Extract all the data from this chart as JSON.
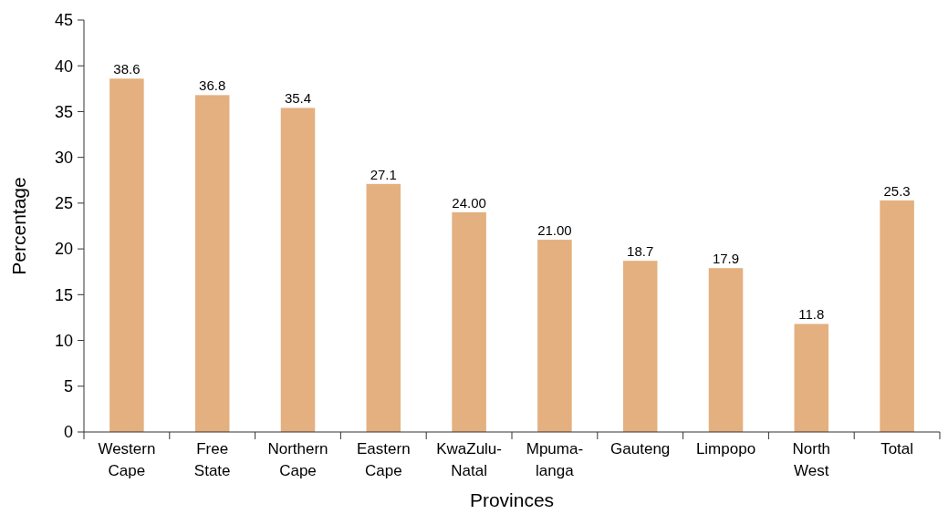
{
  "chart_data": {
    "type": "bar",
    "xlabel": "Provinces",
    "ylabel": "Percentage",
    "categories": [
      "Western\nCape",
      "Free\nState",
      "Northern\nCape",
      "Eastern\nCape",
      "KwaZulu-\nNatal",
      "Mpuma-\nlanga",
      "Gauteng",
      "Limpopo",
      "North\nWest",
      "Total"
    ],
    "values": [
      38.6,
      36.8,
      35.4,
      27.1,
      24.0,
      21.0,
      18.7,
      17.9,
      11.8,
      25.3
    ],
    "value_labels": [
      "38.6",
      "36.8",
      "35.4",
      "27.1",
      "24.00",
      "21.00",
      "18.7",
      "17.9",
      "11.8",
      "25.3"
    ],
    "color": "#e4b07f",
    "ylim": [
      0,
      45
    ],
    "yticks": [
      0,
      5,
      10,
      15,
      20,
      25,
      30,
      35,
      40,
      45
    ],
    "grid": false
  }
}
